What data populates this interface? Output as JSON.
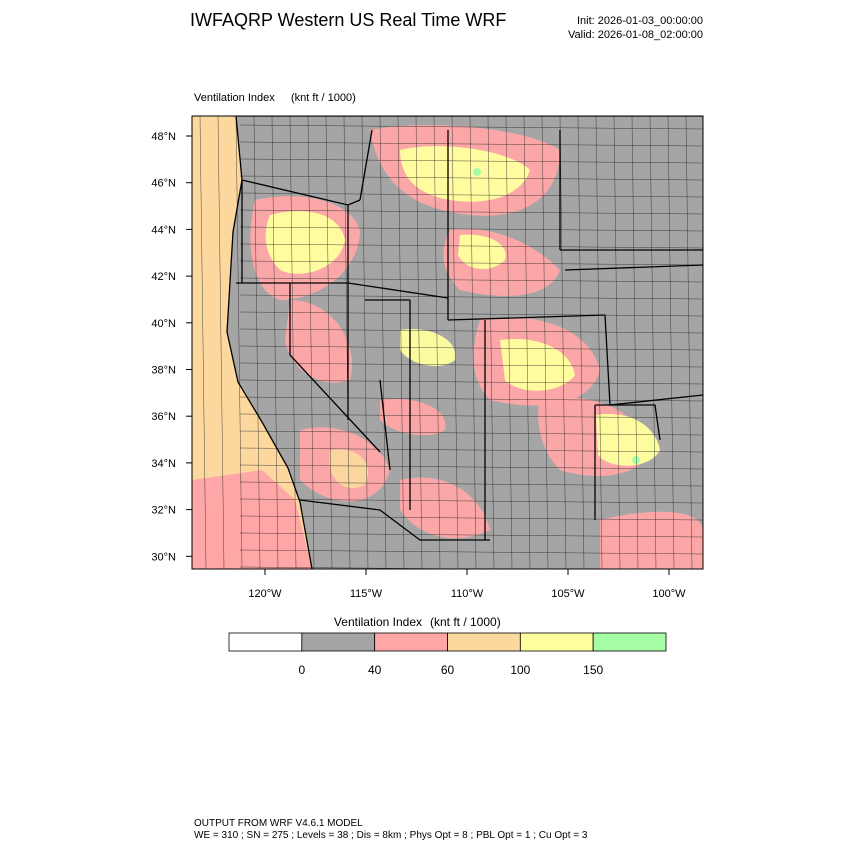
{
  "header": {
    "title": "IWFAQRP Western US Real Time WRF",
    "init": "Init: 2026-01-03_00:00:00",
    "valid": "Valid: 2026-01-08_02:00:00"
  },
  "map": {
    "variable": "Ventilation Index",
    "units": "(knt ft / 1000)",
    "lat_labels": [
      "48°N",
      "46°N",
      "44°N",
      "42°N",
      "40°N",
      "38°N",
      "36°N",
      "34°N",
      "32°N",
      "30°N"
    ],
    "lon_labels": [
      "120°W",
      "115°W",
      "110°W",
      "105°W",
      "100°W"
    ]
  },
  "colorbar": {
    "variable": "Ventilation Index",
    "units": "(knt ft / 1000)",
    "colors": [
      "#ffffff",
      "#a5a5a5",
      "#ffa6a6",
      "#fcd89e",
      "#ffff9e",
      "#a6ffa6"
    ],
    "boundaries": [
      0,
      40,
      60,
      100,
      150
    ]
  },
  "footer": {
    "line1": "OUTPUT FROM WRF V4.6.1 MODEL",
    "line2": "WE = 310 ; SN = 275 ; Levels = 38 ; Dis = 8km ; Phys Opt = 8 ; PBL Opt = 1 ; Cu Opt = 3"
  }
}
